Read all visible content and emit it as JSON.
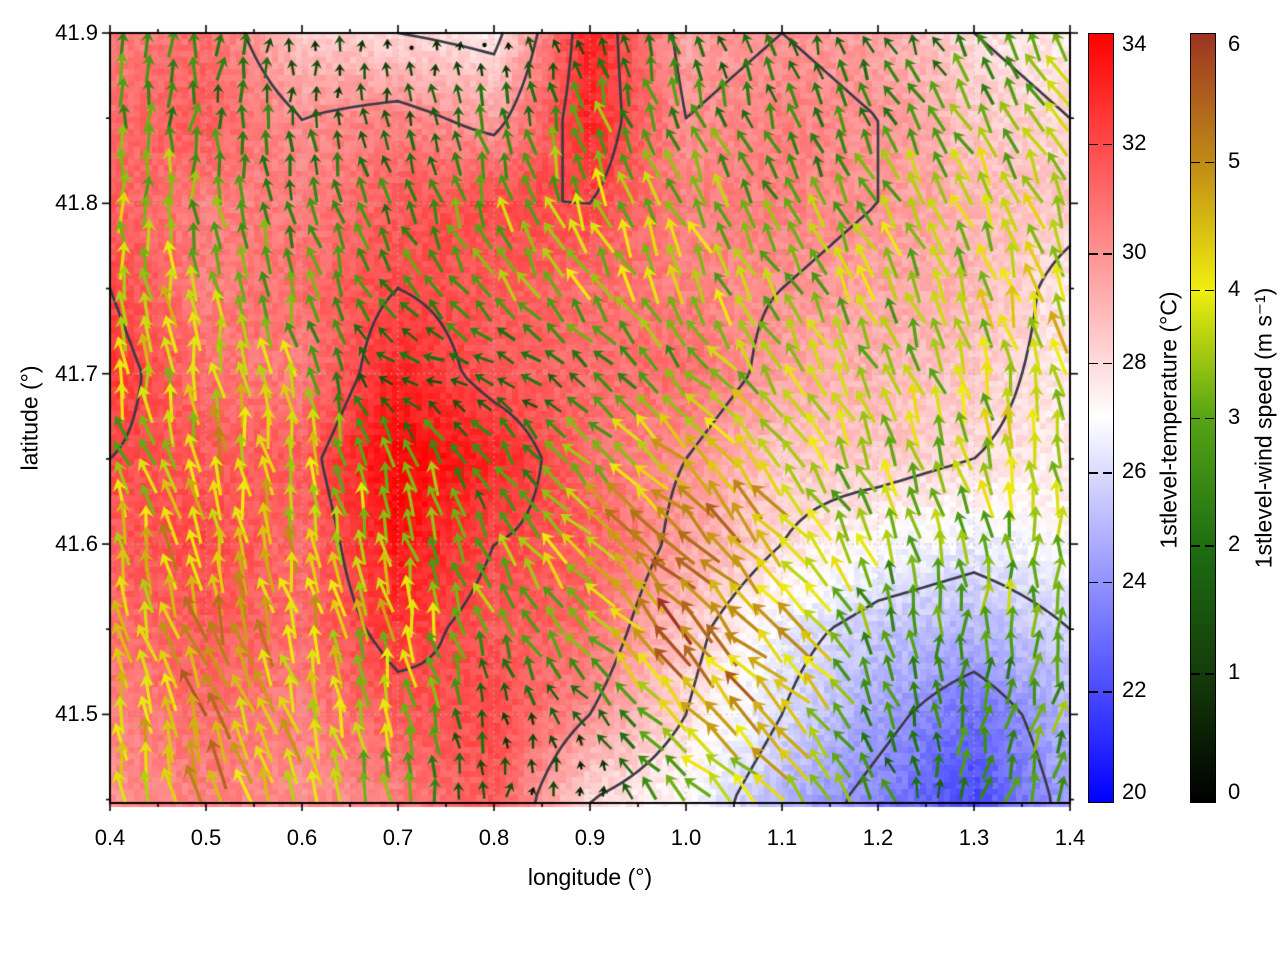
{
  "figure": {
    "xlabel": "longitude (°)",
    "ylabel": "latitude (°)"
  },
  "chart_data": {
    "type": "heatmap",
    "subtype": "2d-field-with-vectors-and-contours",
    "x": {
      "label": "longitude (°)",
      "min": 0.4,
      "max": 1.4,
      "tick_values": [
        0.4,
        0.5,
        0.6,
        0.7,
        0.8,
        0.9,
        1.0,
        1.1,
        1.2,
        1.3,
        1.4
      ],
      "tick_labels": [
        "0.4",
        "0.5",
        "0.6",
        "0.7",
        "0.8",
        "0.9",
        "1.0",
        "1.1",
        "1.2",
        "1.3",
        "1.4"
      ],
      "minor_tick_values": [
        0.45,
        0.55,
        0.65,
        0.75,
        0.85,
        0.95,
        1.05,
        1.15,
        1.25,
        1.35
      ]
    },
    "y": {
      "label": "latitude (°)",
      "min": 41.448,
      "max": 41.9,
      "tick_values": [
        41.5,
        41.6,
        41.7,
        41.8,
        41.9
      ],
      "tick_labels": [
        "41.5",
        "41.6",
        "41.7",
        "41.8",
        "41.9"
      ],
      "minor_tick_values": [
        41.45,
        41.55,
        41.65,
        41.75,
        41.85
      ]
    },
    "temperature": {
      "label": "1stlevel-temperature (°C)",
      "min": 20,
      "max": 34,
      "tick_values": [
        34,
        32,
        30,
        28,
        26,
        24,
        22,
        20
      ],
      "tick_labels": [
        "34",
        "32",
        "30",
        "28",
        "26",
        "24",
        "22",
        "20"
      ],
      "palette": [
        [
          20,
          "#0000ff"
        ],
        [
          27,
          "#ffffff"
        ],
        [
          34,
          "#ff0000"
        ]
      ],
      "grid_lon": [
        0.4,
        0.5,
        0.6,
        0.7,
        0.8,
        0.9,
        1.0,
        1.1,
        1.2,
        1.3,
        1.4
      ],
      "grid_lat": [
        41.9,
        41.85,
        41.8,
        41.75,
        41.7,
        41.65,
        41.6,
        41.55,
        41.5,
        41.45
      ],
      "values": [
        [
          30.5,
          31.0,
          28.5,
          28.0,
          27.5,
          33.0,
          29.5,
          30.0,
          29.5,
          28.0,
          27.5
        ],
        [
          31.0,
          31.5,
          30.0,
          30.5,
          29.5,
          33.0,
          30.0,
          30.5,
          30.0,
          28.5,
          28.0
        ],
        [
          31.5,
          30.5,
          30.5,
          31.5,
          32.0,
          32.0,
          30.5,
          30.5,
          30.0,
          29.0,
          28.5
        ],
        [
          32.0,
          30.5,
          31.0,
          32.0,
          31.5,
          31.0,
          30.5,
          30.0,
          29.5,
          29.0,
          27.5
        ],
        [
          32.5,
          31.0,
          30.5,
          33.0,
          31.5,
          31.0,
          31.0,
          29.5,
          29.0,
          28.5,
          27.5
        ],
        [
          32.0,
          31.5,
          31.5,
          34.0,
          33.0,
          31.0,
          30.0,
          28.5,
          28.5,
          28.0,
          27.5
        ],
        [
          31.5,
          32.0,
          31.0,
          33.5,
          32.0,
          31.5,
          29.5,
          28.0,
          27.0,
          26.5,
          27.0
        ],
        [
          31.0,
          31.5,
          31.0,
          32.5,
          31.5,
          31.0,
          28.5,
          26.5,
          25.5,
          25.0,
          26.0
        ],
        [
          30.5,
          31.0,
          30.5,
          31.5,
          32.0,
          30.0,
          28.0,
          26.0,
          24.5,
          23.0,
          25.0
        ],
        [
          30.0,
          30.5,
          30.0,
          30.5,
          31.5,
          28.0,
          27.0,
          25.0,
          23.5,
          22.0,
          24.5
        ]
      ]
    },
    "wind": {
      "label": "1stlevel-wind speed (m s⁻¹)",
      "min": 0,
      "max": 6,
      "tick_values": [
        6,
        5,
        4,
        3,
        2,
        1,
        0
      ],
      "tick_labels": [
        "6",
        "5",
        "4",
        "3",
        "2",
        "1",
        "0"
      ],
      "palette": [
        [
          0,
          "#000000"
        ],
        [
          1,
          "#143c0a"
        ],
        [
          2,
          "#1e6e12"
        ],
        [
          3,
          "#55a415"
        ],
        [
          4,
          "#f0ee0e"
        ],
        [
          5,
          "#bf8a16"
        ],
        [
          6,
          "#9d3423"
        ]
      ],
      "grid_lon": [
        0.4,
        0.5,
        0.6,
        0.7,
        0.8,
        0.9,
        1.0,
        1.1,
        1.2,
        1.3,
        1.4
      ],
      "grid_lat": [
        41.9,
        41.85,
        41.8,
        41.75,
        41.7,
        41.65,
        41.6,
        41.55,
        41.5,
        41.45
      ],
      "u": [
        [
          0.3,
          0.2,
          0.0,
          0.0,
          0.1,
          -0.3,
          -0.6,
          -0.4,
          -0.6,
          -1.0,
          -1.4
        ],
        [
          0.2,
          0.3,
          0.1,
          -0.2,
          -0.5,
          -0.8,
          -1.0,
          -0.8,
          -1.2,
          -1.5,
          -1.6
        ],
        [
          0.0,
          -0.3,
          -0.5,
          -0.8,
          -1.0,
          -1.2,
          -1.5,
          -1.2,
          -1.5,
          -1.6,
          -1.4
        ],
        [
          -0.3,
          -0.5,
          -0.8,
          -1.4,
          -1.8,
          -2.0,
          -1.6,
          -1.8,
          -1.5,
          -1.2,
          -1.0
        ],
        [
          -0.3,
          -0.5,
          -0.6,
          -1.6,
          -1.8,
          -1.5,
          -2.2,
          -2.0,
          -1.5,
          -1.0,
          -0.8
        ],
        [
          -1.2,
          -0.8,
          -0.8,
          -1.0,
          -1.2,
          -2.4,
          -3.4,
          -2.4,
          -1.2,
          -0.8,
          -0.5
        ],
        [
          -0.5,
          -1.0,
          -0.8,
          -0.8,
          -1.4,
          -3.0,
          -4.0,
          -3.0,
          -1.4,
          -0.4,
          0.0
        ],
        [
          -0.8,
          -1.5,
          -1.0,
          -0.6,
          -1.0,
          -2.4,
          -4.2,
          -3.4,
          -1.0,
          0.3,
          0.5
        ],
        [
          -0.5,
          -1.8,
          -1.2,
          -0.8,
          -0.3,
          -1.0,
          -3.0,
          -3.6,
          -1.0,
          0.5,
          0.8
        ],
        [
          -0.3,
          -1.5,
          -1.0,
          -0.5,
          0.2,
          0.4,
          -2.0,
          -2.8,
          -0.8,
          0.5,
          1.0
        ]
      ],
      "v": [
        [
          2.6,
          2.0,
          1.2,
          0.5,
          0.4,
          1.2,
          2.0,
          1.6,
          1.4,
          2.0,
          2.6
        ],
        [
          3.0,
          2.4,
          1.8,
          1.4,
          2.2,
          2.8,
          2.4,
          2.0,
          2.2,
          2.6,
          3.0
        ],
        [
          3.8,
          3.2,
          2.6,
          2.2,
          3.0,
          3.4,
          3.0,
          2.6,
          3.0,
          3.2,
          3.5
        ],
        [
          4.0,
          3.5,
          3.0,
          2.0,
          2.4,
          3.0,
          3.2,
          3.0,
          3.2,
          3.5,
          3.8
        ],
        [
          4.2,
          3.8,
          3.4,
          0.3,
          0.5,
          1.2,
          2.2,
          3.0,
          3.0,
          3.5,
          3.8
        ],
        [
          2.2,
          4.2,
          3.8,
          3.0,
          2.0,
          2.4,
          3.4,
          2.8,
          3.2,
          3.5,
          3.8
        ],
        [
          4.2,
          4.4,
          4.0,
          3.5,
          2.4,
          3.0,
          4.0,
          3.2,
          3.0,
          3.0,
          3.5
        ],
        [
          4.0,
          4.5,
          4.2,
          3.8,
          3.0,
          2.4,
          4.2,
          3.4,
          2.6,
          2.8,
          3.2
        ],
        [
          3.8,
          4.6,
          4.0,
          3.5,
          1.4,
          1.2,
          3.0,
          3.6,
          2.2,
          2.5,
          3.0
        ],
        [
          3.5,
          4.5,
          3.8,
          3.0,
          1.0,
          0.8,
          2.0,
          2.8,
          2.0,
          2.2,
          2.8
        ]
      ]
    },
    "contours": {
      "levels": [
        24,
        26,
        28,
        30,
        32
      ],
      "color": "#3a3a44"
    },
    "grid_lines": {
      "visible": true,
      "style": "dotted",
      "color": "#b8b8b8"
    },
    "legend_position": "right-colorbars"
  }
}
